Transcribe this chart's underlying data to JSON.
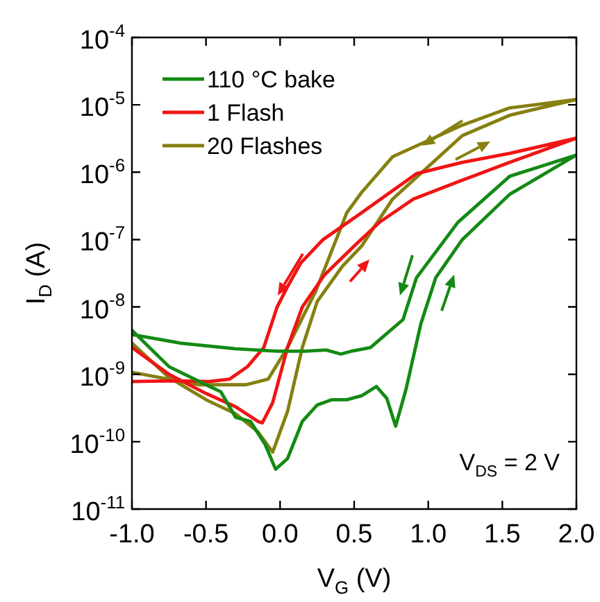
{
  "chart_data": {
    "type": "line",
    "xlabel": "V$_{G}$ (V)",
    "ylabel": "I$_{D}$ (A)",
    "log": "y",
    "grid": false,
    "legend": "top left",
    "marker": "none",
    "line_style": "solid",
    "xlim": [
      -1,
      2
    ],
    "xticks": [
      {
        "value": -1,
        "label": "-1.0"
      },
      {
        "value": -0.5,
        "label": "-0.5"
      },
      {
        "value": 0,
        "label": "0.0"
      },
      {
        "value": 0.5,
        "label": "0.5"
      },
      {
        "value": 1,
        "label": "1.0"
      },
      {
        "value": 1.5,
        "label": "1.5"
      },
      {
        "value": 2,
        "label": "2.0"
      }
    ],
    "ylim": [
      1e-11,
      0.0001
    ],
    "yticks": [
      {
        "value": 1e-11,
        "label": "10$^{-11}$"
      },
      {
        "value": 1e-10,
        "label": "10$^{-10}$"
      },
      {
        "value": 1e-09,
        "label": "10$^{-9}$"
      },
      {
        "value": 1e-08,
        "label": "10$^{-8}$"
      },
      {
        "value": 1e-07,
        "label": "10$^{-7}$"
      },
      {
        "value": 1e-06,
        "label": "10$^{-6}$"
      },
      {
        "value": 1e-05,
        "label": "10$^{-5}$"
      },
      {
        "value": 0.0001,
        "label": "10$^{-4}$"
      }
    ],
    "annotations": [
      "V$_{DS}$ = 2 V"
    ],
    "series": [
      {
        "name": "110 °C bake",
        "color": "#138a13",
        "x": [
          -1,
          -0.75,
          -0.5,
          -0.4,
          -0.3,
          -0.2,
          -0.1,
          -0.03,
          0.05,
          0.15,
          0.25,
          0.35,
          0.45,
          0.55,
          0.65,
          0.72,
          0.78,
          0.85,
          0.95,
          1.05,
          1.23,
          1.55,
          2,
          1.55,
          1.2,
          0.92,
          0.83,
          0.61,
          0.48,
          0.41,
          0.31,
          0.17,
          -0.02,
          -0.3,
          -0.67,
          -1
        ],
        "values": [
          4.5e-09,
          1.3e-09,
          7e-10,
          5.5e-10,
          2.3e-10,
          2e-10,
          9e-11,
          3.9e-11,
          5.6e-11,
          2e-10,
          3.5e-10,
          4.2e-10,
          4.2e-10,
          4.8e-10,
          6.6e-10,
          4.4e-10,
          1.7e-10,
          6e-10,
          5.6e-09,
          2.7e-08,
          1e-07,
          4.7e-07,
          1.8e-06,
          8.7e-07,
          1.8e-07,
          2.7e-08,
          6.5e-09,
          2.5e-09,
          2.2e-09,
          2e-09,
          2.3e-09,
          2.2e-09,
          2.2e-09,
          2.4e-09,
          2.9e-09,
          3.9e-09
        ]
      },
      {
        "name": "1 Flash",
        "color": "#f01414",
        "x": [
          -1,
          -0.75,
          -0.5,
          -0.3,
          -0.15,
          -0.12,
          -0.05,
          0.05,
          0.15,
          0.3,
          0.5,
          0.67,
          0.9,
          1.23,
          1.55,
          2,
          1.55,
          1.23,
          0.92,
          0.55,
          0.29,
          0.14,
          0.05,
          -0.02,
          -0.11,
          -0.22,
          -0.34,
          -0.48,
          -0.72,
          -1
        ],
        "values": [
          2.5e-09,
          1e-09,
          5.2e-10,
          3.3e-10,
          2e-10,
          1.9e-10,
          3.8e-10,
          2.5e-09,
          1e-08,
          3e-08,
          8e-08,
          1.8e-07,
          4e-07,
          7.6e-07,
          1.4e-06,
          3.2e-06,
          1.9e-06,
          1.4e-06,
          9.5e-07,
          2.5e-07,
          1e-07,
          4.5e-08,
          2e-08,
          1e-08,
          2.5e-09,
          1.3e-09,
          8.5e-10,
          7.8e-10,
          8e-10,
          7.8e-10
        ]
      },
      {
        "name": "20 Flashes",
        "color": "#858010",
        "x": [
          -1,
          -0.75,
          -0.5,
          -0.3,
          -0.15,
          -0.05,
          0.05,
          0.15,
          0.25,
          0.42,
          0.55,
          0.76,
          1.23,
          1.55,
          2,
          1.55,
          1.23,
          0.76,
          0.55,
          0.45,
          0.24,
          0.05,
          -0.08,
          -0.23,
          -0.55,
          -1
        ],
        "values": [
          2.9e-09,
          9e-10,
          4.2e-10,
          2.6e-10,
          1.4e-10,
          7e-11,
          2.8e-10,
          2.5e-09,
          1.2e-08,
          4e-08,
          8e-08,
          4e-07,
          3.5e-06,
          7e-06,
          1.2e-05,
          9e-06,
          5e-06,
          1.7e-06,
          5e-07,
          2.5e-07,
          1.7e-08,
          2.5e-09,
          8.5e-10,
          7e-10,
          7e-10,
          1.07e-09
        ]
      }
    ]
  }
}
